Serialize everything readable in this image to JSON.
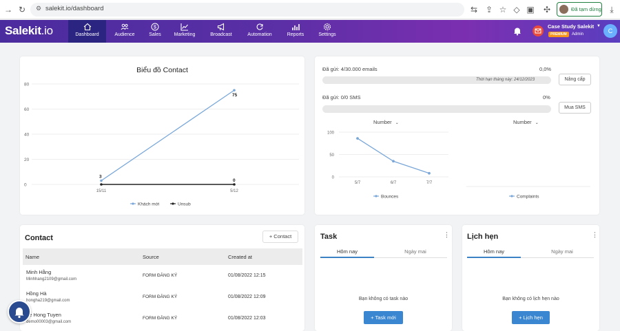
{
  "browser": {
    "url": "salekit.io/dashboard",
    "paused_label": "Đã tạm dừng"
  },
  "nav": {
    "logo_main": "Salekit",
    "logo_suffix": ".io",
    "items": [
      {
        "label": "Dashboard",
        "icon": "home-icon"
      },
      {
        "label": "Audience",
        "icon": "users-icon"
      },
      {
        "label": "Sales",
        "icon": "dollar-icon"
      },
      {
        "label": "Marketing",
        "icon": "chart-line-icon"
      },
      {
        "label": "Broadcast",
        "icon": "megaphone-icon"
      },
      {
        "label": "Automation",
        "icon": "refresh-icon"
      },
      {
        "label": "Reports",
        "icon": "bar-chart-icon"
      },
      {
        "label": "Settings",
        "icon": "gear-icon"
      }
    ],
    "account_name": "Case Study Salekit",
    "premium_badge": "PREMIUM",
    "role": "Admin",
    "avatar_initial": "C"
  },
  "contact_chart": {
    "title": "Biểu đồ Contact",
    "chart_data": {
      "type": "line",
      "x": [
        "15/11",
        "5/12"
      ],
      "series": [
        {
          "name": "Khách mới",
          "values": [
            3,
            75
          ],
          "color": "#7aa7d8"
        },
        {
          "name": "Unsub",
          "values": [
            0,
            0
          ],
          "color": "#222222"
        }
      ],
      "ylim": [
        0,
        80
      ],
      "yticks": [
        0,
        20,
        40,
        60,
        80
      ],
      "point_labels": [
        "3",
        "75",
        "0"
      ],
      "legend": "bottom",
      "grid": true
    }
  },
  "quota": {
    "email_label": "Đã gửi: 4/30.000 emails",
    "email_pct": "0,0%",
    "email_fill": 0.0,
    "expiry": "Thời hạn tháng này: 24/12/2023",
    "upgrade_label": "Nâng cấp",
    "sms_label": "Đã gửi: 0/0 SMS",
    "sms_pct": "0%",
    "sms_fill": 0.0,
    "buy_sms_label": "Mua SMS",
    "metric_left": "Number",
    "metric_right": "Number",
    "bounces_chart": {
      "type": "line",
      "x": [
        "5/7",
        "6/7",
        "7/7"
      ],
      "series": [
        {
          "name": "Bounces",
          "values": [
            86,
            35,
            8
          ],
          "color": "#7aa7d8"
        }
      ],
      "ylim": [
        0,
        100
      ],
      "yticks": [
        0,
        50,
        100
      ],
      "legend": "bottom"
    },
    "complaints_chart": {
      "type": "line",
      "x": [],
      "series": [
        {
          "name": "Complaints",
          "values": [],
          "color": "#7aa7d8"
        }
      ],
      "legend": "bottom"
    }
  },
  "contacts": {
    "title": "Contact",
    "add_label": "+ Contact",
    "columns": [
      "Name",
      "Source",
      "Created at"
    ],
    "rows": [
      {
        "name": "Minh Hằng",
        "email": "Minhhang2109@gmail.com",
        "source": "FORM ĐĂNG KÝ",
        "created": "01/08/2022 12:15"
      },
      {
        "name": "Hồng Hà",
        "email": "honghа219@gmail.com",
        "source": "FORM ĐĂNG KÝ",
        "created": "01/08/2022 12:09"
      },
      {
        "name": "Le Hong Tuyen",
        "email": "demo00003@gmail.com",
        "source": "FORM ĐĂNG KÝ",
        "created": "01/08/2022 12:03"
      }
    ]
  },
  "task": {
    "title": "Task",
    "tab_today": "Hôm nay",
    "tab_tomorrow": "Ngày mai",
    "empty": "Bạn không có task nào",
    "button": "+ Task mới"
  },
  "appointment": {
    "title": "Lịch hẹn",
    "tab_today": "Hôm nay",
    "tab_tomorrow": "Ngày mai",
    "empty": "Bạn không có lịch hẹn nào",
    "button": "+ Lịch hẹn"
  }
}
